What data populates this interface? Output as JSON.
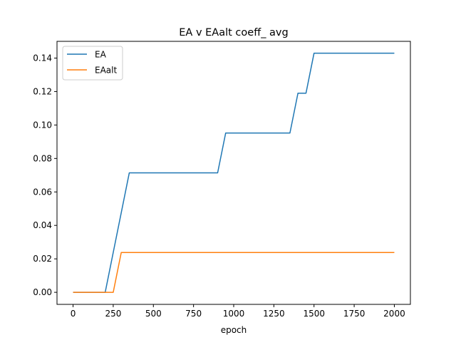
{
  "chart_data": {
    "type": "line",
    "title": "EA v EAalt coeff_ avg",
    "xlabel": "epoch",
    "ylabel": "",
    "xlim": [
      -100,
      2100
    ],
    "ylim": [
      -0.0072,
      0.15
    ],
    "xticks": [
      0,
      250,
      500,
      750,
      1000,
      1250,
      1500,
      1750,
      2000
    ],
    "xtick_labels": [
      "0",
      "250",
      "500",
      "750",
      "1000",
      "1250",
      "1500",
      "1750",
      "2000"
    ],
    "yticks": [
      0.0,
      0.02,
      0.04,
      0.06,
      0.08,
      0.1,
      0.12,
      0.14
    ],
    "ytick_labels": [
      "0.00",
      "0.02",
      "0.04",
      "0.06",
      "0.08",
      "0.10",
      "0.12",
      "0.14"
    ],
    "grid": false,
    "legend": {
      "placement": "top-left",
      "entries": [
        "EA",
        "EAalt"
      ]
    },
    "series": [
      {
        "name": "EA",
        "color": "#1f77b4",
        "x": [
          0,
          200,
          350,
          900,
          950,
          1350,
          1400,
          1450,
          1500,
          2000
        ],
        "y": [
          0.0,
          0.0,
          0.0714,
          0.0714,
          0.0952,
          0.0952,
          0.119,
          0.119,
          0.1429,
          0.1429
        ]
      },
      {
        "name": "EAalt",
        "color": "#ff7f0e",
        "x": [
          0,
          250,
          300,
          2000
        ],
        "y": [
          0.0,
          0.0,
          0.0238,
          0.0238
        ]
      }
    ]
  }
}
